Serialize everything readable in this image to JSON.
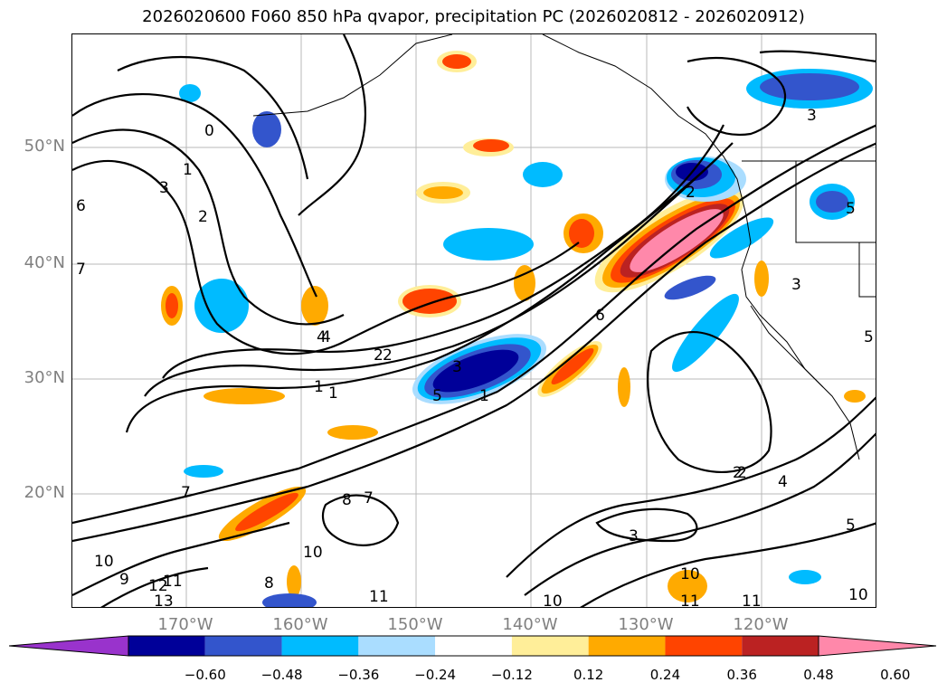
{
  "title": "2026020600 F060 850 hPa qvapor, precipitation PC (2026020812 - 2026020912)",
  "lat_labels": [
    "50°N",
    "40°N",
    "30°N",
    "20°N"
  ],
  "lon_labels": [
    "170°W",
    "160°W",
    "150°W",
    "140°W",
    "130°W",
    "120°W"
  ],
  "colorbar": {
    "ticks": [
      "−0.60",
      "−0.48",
      "−0.36",
      "−0.24",
      "−0.12",
      "0.12",
      "0.24",
      "0.36",
      "0.48",
      "0.60"
    ],
    "colors": [
      "#9933cc",
      "#000099",
      "#3355cc",
      "#00bbff",
      "#aaddff",
      "#ffffff",
      "#ffee99",
      "#ffaa00",
      "#ff4400",
      "#bb2222",
      "#ff88aa"
    ]
  },
  "contour_labels": [
    "0",
    "1",
    "3",
    "2",
    "6",
    "7",
    "4",
    "2",
    "2",
    "1",
    "3",
    "5",
    "1",
    "6",
    "2",
    "3",
    "4",
    "3",
    "2",
    "4",
    "5",
    "5",
    "3",
    "2",
    "7",
    "8",
    "7",
    "8",
    "9",
    "10",
    "11",
    "12",
    "13",
    "11",
    "10",
    "10",
    "11",
    "11",
    "10",
    "5",
    "1",
    "10"
  ]
}
